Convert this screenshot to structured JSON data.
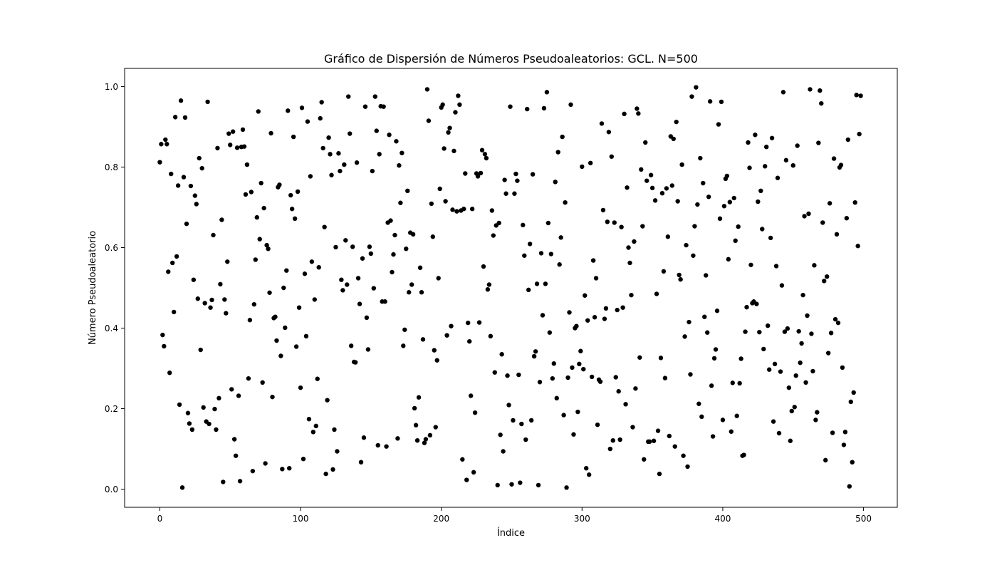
{
  "chart_data": {
    "type": "scatter",
    "title": "Gráfico de Dispersión de Números Pseudoaleatorios: GCL. N=500",
    "xlabel": "Índice",
    "ylabel": "Número Pseudoaleatorio",
    "xlim": [
      -25,
      524
    ],
    "ylim": [
      -0.045,
      1.045
    ],
    "xticks": [
      0,
      100,
      200,
      300,
      400,
      500
    ],
    "yticks": [
      0.0,
      0.2,
      0.4,
      0.6,
      0.8,
      1.0
    ],
    "xtick_labels": [
      "0",
      "100",
      "200",
      "300",
      "400",
      "500"
    ],
    "ytick_labels": [
      "0.0",
      "0.2",
      "0.4",
      "0.6",
      "0.8",
      "1.0"
    ],
    "grid": false,
    "marker_color": "#000000",
    "series": [
      {
        "values": [
          0.812,
          0.857,
          0.383,
          0.355,
          0.868,
          0.857,
          0.54,
          0.289,
          0.783,
          0.562,
          0.44,
          0.924,
          0.578,
          0.754,
          0.21,
          0.965,
          0.004,
          0.775,
          0.923,
          0.659,
          0.189,
          0.163,
          0.753,
          0.148,
          0.52,
          0.729,
          0.708,
          0.473,
          0.822,
          0.346,
          0.797,
          0.203,
          0.462,
          0.168,
          0.962,
          0.162,
          0.451,
          0.47,
          0.631,
          0.199,
          0.148,
          0.847,
          0.226,
          0.509,
          0.669,
          0.018,
          0.471,
          0.437,
          0.565,
          0.883,
          0.855,
          0.248,
          0.888,
          0.124,
          0.083,
          0.848,
          0.232,
          0.02,
          0.85,
          0.893,
          0.851,
          0.732,
          0.806,
          0.275,
          0.42,
          0.738,
          0.045,
          0.459,
          0.57,
          0.675,
          0.938,
          0.621,
          0.76,
          0.265,
          0.698,
          0.064,
          0.606,
          0.597,
          0.488,
          0.884,
          0.229,
          0.425,
          0.428,
          0.369,
          0.75,
          0.756,
          0.331,
          0.05,
          0.5,
          0.401,
          0.543,
          0.94,
          0.052,
          0.73,
          0.696,
          0.875,
          0.672,
          0.354,
          0.739,
          0.451,
          0.252,
          0.947,
          0.075,
          0.535,
          0.38,
          0.913,
          0.174,
          0.777,
          0.565,
          0.142,
          0.471,
          0.157,
          0.274,
          0.551,
          0.921,
          0.961,
          0.847,
          0.651,
          0.038,
          0.221,
          0.873,
          0.832,
          0.78,
          0.049,
          0.148,
          0.601,
          0.094,
          0.834,
          0.79,
          0.52,
          0.494,
          0.806,
          0.618,
          0.508,
          0.975,
          0.883,
          0.356,
          0.602,
          0.316,
          0.315,
          0.811,
          0.524,
          0.46,
          0.067,
          0.573,
          0.128,
          0.95,
          0.426,
          0.347,
          0.602,
          0.585,
          0.79,
          0.499,
          0.975,
          0.89,
          0.109,
          0.832,
          0.951,
          0.466,
          0.95,
          0.466,
          0.106,
          0.662,
          0.88,
          0.667,
          0.539,
          0.583,
          0.631,
          0.864,
          0.126,
          0.804,
          0.711,
          0.835,
          0.356,
          0.396,
          0.597,
          0.741,
          0.489,
          0.637,
          0.508,
          0.633,
          0.201,
          0.159,
          0.121,
          0.228,
          0.55,
          0.489,
          0.372,
          0.115,
          0.124,
          0.993,
          0.915,
          0.134,
          0.709,
          0.627,
          0.345,
          0.154,
          0.32,
          0.524,
          0.746,
          0.948,
          0.955,
          0.846,
          0.715,
          0.382,
          0.886,
          0.897,
          0.405,
          0.694,
          0.84,
          0.936,
          0.69,
          0.977,
          0.955,
          0.692,
          0.074,
          0.696,
          0.784,
          0.023,
          0.413,
          0.367,
          0.232,
          0.696,
          0.042,
          0.19,
          0.784,
          0.777,
          0.414,
          0.785,
          0.842,
          0.553,
          0.832,
          0.822,
          0.496,
          0.508,
          0.38,
          0.692,
          0.63,
          0.29,
          0.655,
          0.01,
          0.661,
          0.135,
          0.335,
          0.094,
          0.768,
          0.734,
          0.282,
          0.209,
          0.95,
          0.012,
          0.171,
          0.734,
          0.783,
          0.766,
          0.284,
          0.016,
          0.162,
          0.656,
          0.58,
          0.123,
          0.944,
          0.495,
          0.609,
          0.171,
          0.782,
          0.33,
          0.342,
          0.51,
          0.01,
          0.266,
          0.586,
          0.432,
          0.946,
          0.51,
          0.986,
          0.661,
          0.389,
          0.584,
          0.275,
          0.312,
          0.763,
          0.226,
          0.837,
          0.558,
          0.625,
          0.875,
          0.184,
          0.712,
          0.004,
          0.277,
          0.439,
          0.955,
          0.302,
          0.136,
          0.4,
          0.405,
          0.192,
          0.311,
          0.343,
          0.801,
          0.298,
          0.481,
          0.052,
          0.419,
          0.036,
          0.81,
          0.279,
          0.568,
          0.427,
          0.524,
          0.16,
          0.272,
          0.267,
          0.908,
          0.693,
          0.423,
          0.449,
          0.664,
          0.887,
          0.1,
          0.826,
          0.121,
          0.662,
          0.278,
          0.445,
          0.243,
          0.123,
          0.651,
          0.451,
          0.932,
          0.211,
          0.749,
          0.6,
          0.562,
          0.482,
          0.154,
          0.615,
          0.25,
          0.945,
          0.933,
          0.327,
          0.794,
          0.653,
          0.074,
          0.861,
          0.766,
          0.118,
          0.118,
          0.78,
          0.748,
          0.12,
          0.717,
          0.485,
          0.145,
          0.038,
          0.326,
          0.735,
          0.541,
          0.276,
          0.747,
          0.627,
          0.132,
          0.876,
          0.754,
          0.87,
          0.106,
          0.912,
          0.715,
          0.532,
          0.521,
          0.806,
          0.083,
          0.379,
          0.606,
          0.056,
          0.415,
          0.285,
          0.975,
          0.58,
          0.653,
          0.998,
          0.707,
          0.212,
          0.822,
          0.18,
          0.76,
          0.428,
          0.531,
          0.389,
          0.726,
          0.963,
          0.257,
          0.131,
          0.325,
          0.347,
          0.443,
          0.906,
          0.672,
          0.962,
          0.172,
          0.703,
          0.771,
          0.778,
          0.571,
          0.713,
          0.143,
          0.264,
          0.723,
          0.617,
          0.182,
          0.652,
          0.263,
          0.324,
          0.083,
          0.085,
          0.391,
          0.452,
          0.861,
          0.798,
          0.557,
          0.462,
          0.466,
          0.88,
          0.46,
          0.714,
          0.39,
          0.741,
          0.646,
          0.348,
          0.802,
          0.85,
          0.406,
          0.297,
          0.624,
          0.872,
          0.168,
          0.311,
          0.554,
          0.773,
          0.139,
          0.292,
          0.506,
          0.986,
          0.391,
          0.817,
          0.399,
          0.252,
          0.12,
          0.194,
          0.804,
          0.204,
          0.282,
          0.853,
          0.392,
          0.314,
          0.362,
          0.482,
          0.678,
          0.265,
          0.431,
          0.684,
          0.993,
          0.386,
          0.293,
          0.556,
          0.172,
          0.191,
          0.86,
          0.99,
          0.958,
          0.662,
          0.517,
          0.072,
          0.528,
          0.338,
          0.71,
          0.388,
          0.14,
          0.821,
          0.422,
          0.633,
          0.413,
          0.799,
          0.805,
          0.302,
          0.11,
          0.142,
          0.673,
          0.868,
          0.007,
          0.217,
          0.067,
          0.24,
          0.712,
          0.979,
          0.604,
          0.882,
          0.977
        ]
      }
    ]
  }
}
